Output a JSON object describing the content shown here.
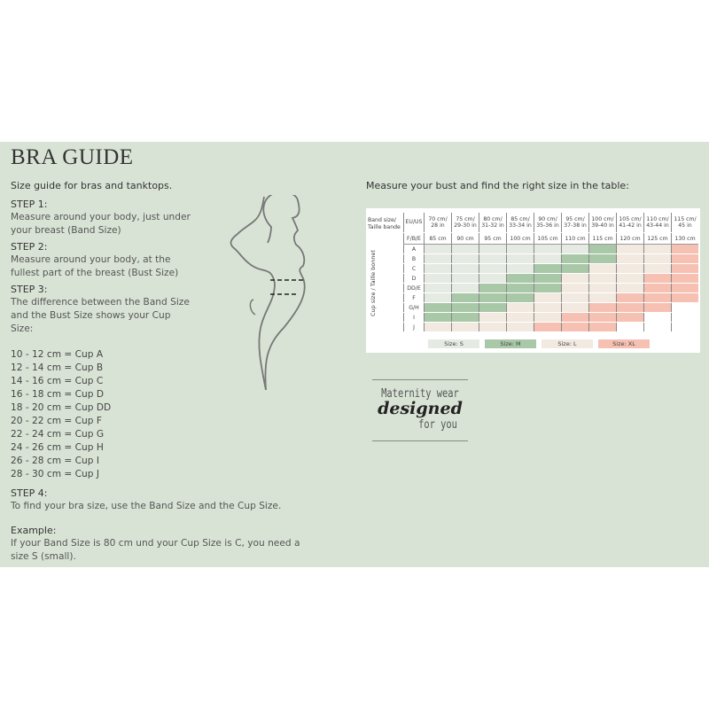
{
  "title": "BRA GUIDE",
  "subtitle": "Size guide for bras and tanktops.",
  "steps": [
    {
      "heading": "STEP 1:",
      "text": "Measure around your body, just under your breast (Band Size)"
    },
    {
      "heading": "STEP 2:",
      "text": "Measure around your body, at the fullest part of the breast (Bust Size)"
    },
    {
      "heading": "STEP 3:",
      "text": "The difference between the Band Size and the Bust Size shows your Cup Size:"
    }
  ],
  "cups": [
    "10 - 12 cm = Cup A",
    "12 - 14 cm = Cup B",
    "14 - 16 cm = Cup C",
    "16 - 18 cm = Cup D",
    "18 - 20 cm = Cup DD",
    "20 - 22 cm = Cup F",
    "22 - 24 cm = Cup G",
    "24 - 26 cm = Cup H",
    "26 - 28 cm = Cup I",
    "28 - 30 cm = Cup J"
  ],
  "step4": {
    "heading": "STEP 4:",
    "text": "To find your bra size, use the Band Size and the Cup Size."
  },
  "example": {
    "heading": "Example:",
    "text": "If your Band Size is 80 cm und your Cup Size is C, you need a size S (small)."
  },
  "table_heading": "Measure your bust and find the right size in the table:",
  "table": {
    "band_label": "Band size/ Taille bande",
    "eu_label": "EU/US",
    "fbe_label": "F/B/E",
    "cup_axis_label": "Cup size / Taille bonnet",
    "eu_us": [
      "70 cm/ 28 in",
      "75 cm/ 29-30 in",
      "80 cm/ 31-32 in",
      "85 cm/ 33-34 in",
      "90 cm/ 35-36 in",
      "95 cm/ 37-38 in",
      "100 cm/ 39-40 in",
      "105 cm/ 41-42 in",
      "110 cm/ 43-44 in",
      "115 cm/ 45 in"
    ],
    "fbe": [
      "85 cm",
      "90 cm",
      "95 cm",
      "100 cm",
      "105 cm",
      "110 cm",
      "115 cm",
      "120 cm",
      "125 cm",
      "130 cm"
    ],
    "rows": [
      {
        "cup": "A",
        "sizes": [
          "S",
          "S",
          "S",
          "S",
          "S",
          "S",
          "M",
          "L",
          "L",
          "XL"
        ]
      },
      {
        "cup": "B",
        "sizes": [
          "S",
          "S",
          "S",
          "S",
          "S",
          "M",
          "M",
          "L",
          "L",
          "XL"
        ]
      },
      {
        "cup": "C",
        "sizes": [
          "S",
          "S",
          "S",
          "S",
          "M",
          "M",
          "L",
          "L",
          "L",
          "XL"
        ]
      },
      {
        "cup": "D",
        "sizes": [
          "S",
          "S",
          "S",
          "M",
          "M",
          "L",
          "L",
          "L",
          "XL",
          "XL"
        ]
      },
      {
        "cup": "DD/E",
        "sizes": [
          "S",
          "S",
          "M",
          "M",
          "M",
          "L",
          "L",
          "L",
          "XL",
          "XL"
        ]
      },
      {
        "cup": "F",
        "sizes": [
          "S",
          "M",
          "M",
          "M",
          "L",
          "L",
          "L",
          "XL",
          "XL",
          "XL"
        ]
      },
      {
        "cup": "G/H",
        "sizes": [
          "M",
          "M",
          "M",
          "L",
          "L",
          "L",
          "XL",
          "XL",
          "XL",
          ""
        ]
      },
      {
        "cup": "I",
        "sizes": [
          "M",
          "M",
          "L",
          "L",
          "L",
          "XL",
          "XL",
          "XL",
          "",
          ""
        ]
      },
      {
        "cup": "J",
        "sizes": [
          "L",
          "L",
          "L",
          "L",
          "XL",
          "XL",
          "XL",
          "",
          "",
          ""
        ]
      }
    ],
    "legend": [
      {
        "key": "S",
        "label": "Size: S",
        "color": "#e5ebe3"
      },
      {
        "key": "M",
        "label": "Size: M",
        "color": "#a9c8a8"
      },
      {
        "key": "L",
        "label": "Size: L",
        "color": "#f2e9e0"
      },
      {
        "key": "XL",
        "label": "Size: XL",
        "color": "#f6c1b2"
      }
    ]
  },
  "logo": {
    "line1": "Maternity wear",
    "line2": "designed",
    "line3": "for you"
  },
  "colors": {
    "background": "#d9e3d5"
  }
}
